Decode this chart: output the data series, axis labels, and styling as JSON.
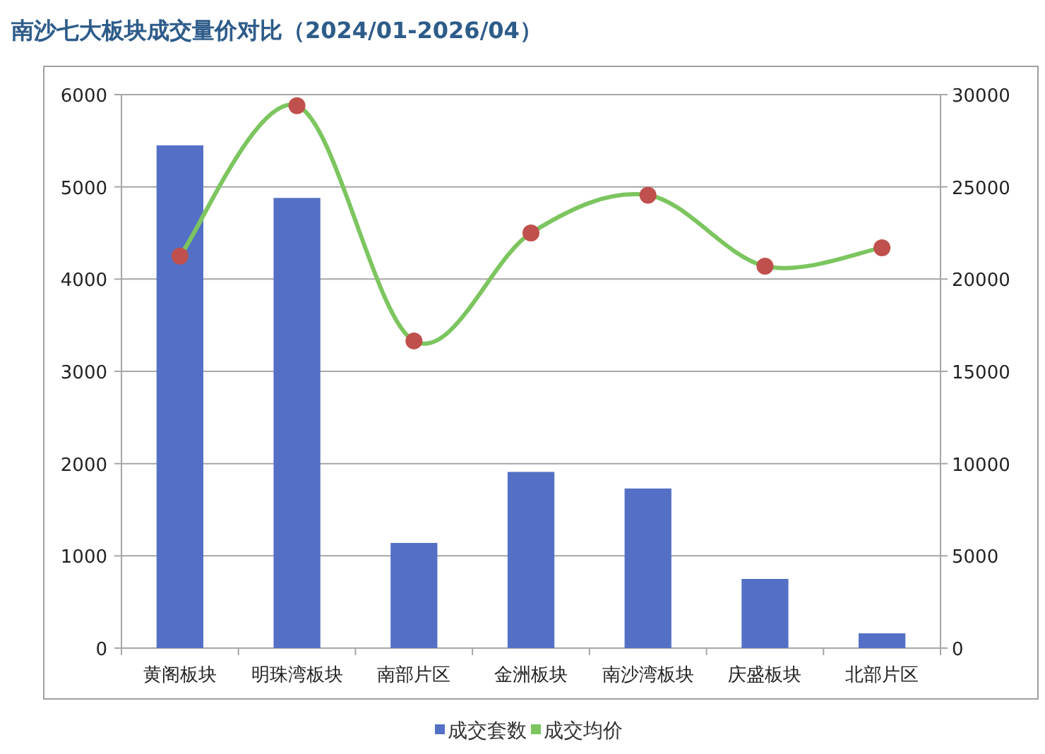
{
  "chart_data": {
    "type": "bar",
    "title": "南沙七大板块成交量价对比（2024/01-2026/04）",
    "categories": [
      "黄阁板块",
      "明珠湾板块",
      "南部片区",
      "金洲板块",
      "南沙湾板块",
      "庆盛板块",
      "北部片区"
    ],
    "series": [
      {
        "name": "成交套数",
        "color": "#5470c6",
        "values": [
          5450,
          4880,
          1140,
          1910,
          1730,
          750,
          160
        ]
      },
      {
        "name": "成交均价",
        "type": "line",
        "axis": "y2",
        "color": "#7cc55f",
        "marker": "circle",
        "values": [
          21250,
          29400,
          16650,
          22500,
          24550,
          20700,
          21700
        ]
      }
    ],
    "ylim": [
      0,
      6000
    ],
    "yticks": [
      0,
      1000,
      2000,
      3000,
      4000,
      5000,
      6000
    ],
    "y2lim": [
      0,
      30000
    ],
    "y2ticks": [
      0,
      5000,
      10000,
      15000,
      20000,
      25000,
      30000
    ],
    "grid": "y",
    "legend": "bottom"
  }
}
